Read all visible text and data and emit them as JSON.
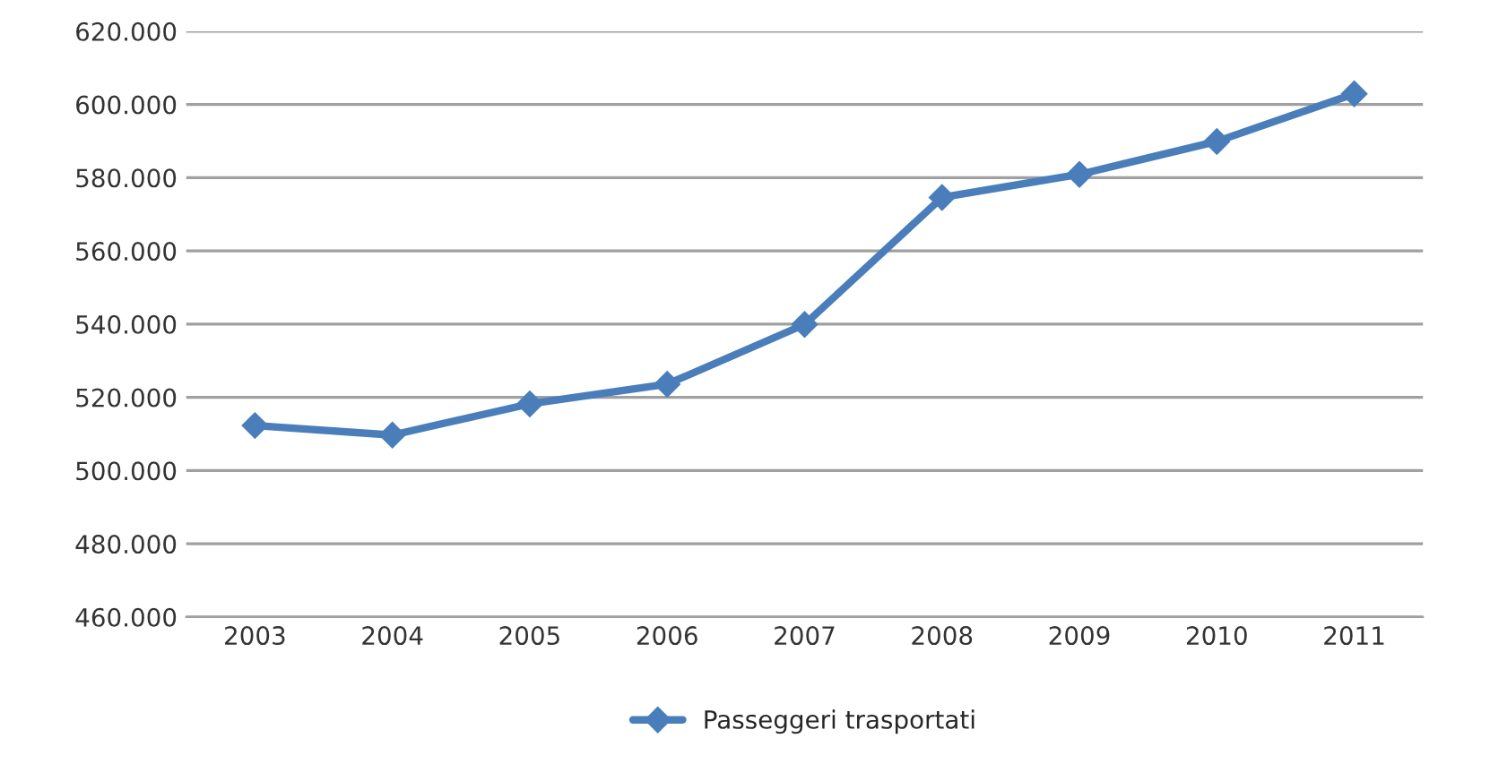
{
  "chart_data": {
    "type": "line",
    "categories": [
      "2003",
      "2004",
      "2005",
      "2006",
      "2007",
      "2008",
      "2009",
      "2010",
      "2011"
    ],
    "series": [
      {
        "name": "Passeggeri trasportati",
        "color": "#4a7ebb",
        "values": [
          512300,
          509700,
          518200,
          523600,
          539900,
          574600,
          580900,
          589900,
          602900
        ]
      }
    ],
    "ylim": [
      460000,
      620000
    ],
    "yticks": [
      {
        "value": 460000,
        "label": "460.000"
      },
      {
        "value": 480000,
        "label": "480.000"
      },
      {
        "value": 500000,
        "label": "500.000"
      },
      {
        "value": 520000,
        "label": "520.000"
      },
      {
        "value": 540000,
        "label": "540.000"
      },
      {
        "value": 560000,
        "label": "560.000"
      },
      {
        "value": 580000,
        "label": "580.000"
      },
      {
        "value": 600000,
        "label": "600.000"
      },
      {
        "value": 620000,
        "label": "620.000"
      }
    ],
    "grid": "y",
    "legend": "bottom",
    "marker": "diamond",
    "line_style": "solid"
  }
}
